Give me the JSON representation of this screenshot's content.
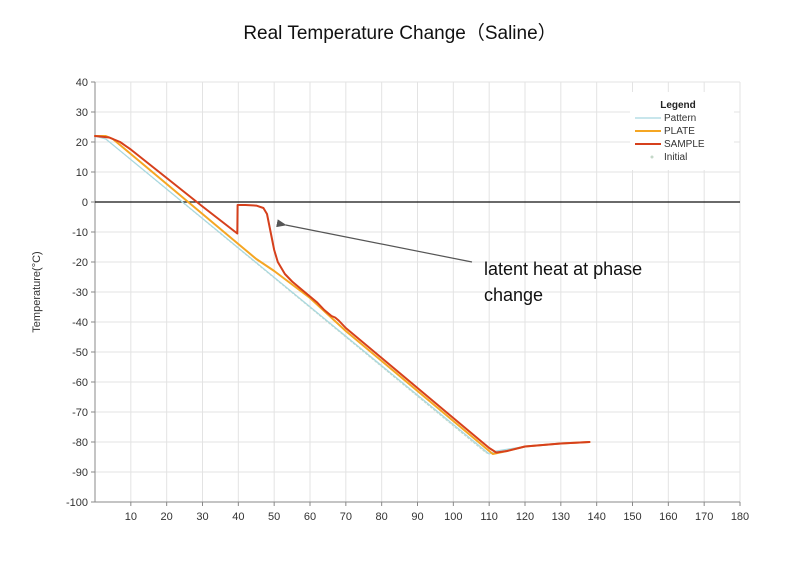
{
  "chart_data": {
    "type": "line",
    "title": "Real Temperature Change（Saline）",
    "ylabel": "Temperature(°C)",
    "xlim": [
      0,
      180
    ],
    "ylim": [
      -100,
      40
    ],
    "x_ticks": [
      10,
      20,
      30,
      40,
      50,
      60,
      70,
      80,
      90,
      100,
      110,
      120,
      130,
      140,
      150,
      160,
      170,
      180
    ],
    "y_ticks": [
      40,
      30,
      20,
      10,
      0,
      -10,
      -20,
      -30,
      -40,
      -50,
      -60,
      -70,
      -80,
      -90,
      -100
    ],
    "grid": true,
    "zero_line": true,
    "legend": {
      "title": "Legend",
      "placement": "top-right",
      "entries": [
        "Pattern",
        "PLATE",
        "SAMPLE",
        "Initial"
      ]
    },
    "series": [
      {
        "name": "Pattern",
        "color": "#a8d8e0",
        "points": [
          [
            0,
            22
          ],
          [
            3,
            21
          ],
          [
            110,
            -84
          ],
          [
            112,
            -83
          ],
          [
            120,
            -81.5
          ],
          [
            130,
            -80.5
          ],
          [
            138,
            -80
          ]
        ]
      },
      {
        "name": "PLATE",
        "color": "#f5a623",
        "points": [
          [
            0,
            22
          ],
          [
            3,
            22
          ],
          [
            5,
            21
          ],
          [
            10,
            16
          ],
          [
            20,
            6
          ],
          [
            30,
            -4
          ],
          [
            40,
            -14
          ],
          [
            45,
            -19
          ],
          [
            50,
            -23
          ],
          [
            60,
            -32
          ],
          [
            70,
            -43
          ],
          [
            80,
            -53
          ],
          [
            90,
            -63
          ],
          [
            100,
            -73
          ],
          [
            110,
            -83
          ],
          [
            111,
            -84
          ],
          [
            115,
            -83
          ],
          [
            120,
            -81.5
          ],
          [
            125,
            -81
          ],
          [
            130,
            -80.5
          ],
          [
            138,
            -80
          ]
        ]
      },
      {
        "name": "SAMPLE",
        "color": "#d6401c",
        "points": [
          [
            0,
            22
          ],
          [
            4,
            21.5
          ],
          [
            7,
            20
          ],
          [
            10,
            17.5
          ],
          [
            20,
            8
          ],
          [
            30,
            -1.5
          ],
          [
            39.7,
            -10.5
          ],
          [
            39.8,
            -1
          ],
          [
            42,
            -1
          ],
          [
            45,
            -1.2
          ],
          [
            47,
            -2
          ],
          [
            48,
            -4
          ],
          [
            49,
            -10
          ],
          [
            50,
            -16
          ],
          [
            51,
            -20
          ],
          [
            53,
            -24
          ],
          [
            55,
            -26.5
          ],
          [
            58,
            -29.5
          ],
          [
            60,
            -31.5
          ],
          [
            62,
            -33.5
          ],
          [
            64,
            -36
          ],
          [
            66,
            -38
          ],
          [
            67,
            -38.5
          ],
          [
            68,
            -39.5
          ],
          [
            70,
            -42
          ],
          [
            80,
            -52
          ],
          [
            90,
            -62
          ],
          [
            100,
            -72
          ],
          [
            108,
            -80
          ],
          [
            110,
            -82
          ],
          [
            112,
            -83.5
          ],
          [
            115,
            -83
          ],
          [
            120,
            -81.5
          ],
          [
            125,
            -81
          ],
          [
            130,
            -80.5
          ],
          [
            138,
            -80
          ]
        ]
      },
      {
        "name": "Initial",
        "color": "#c4d8c8",
        "points": [
          [
            0,
            22
          ],
          [
            3,
            21
          ],
          [
            109,
            -83.5
          ],
          [
            110,
            -84
          ]
        ]
      }
    ],
    "annotation": {
      "text_lines": [
        "latent heat at phase",
        "change"
      ],
      "arrow_target": [
        51,
        -8
      ]
    }
  }
}
